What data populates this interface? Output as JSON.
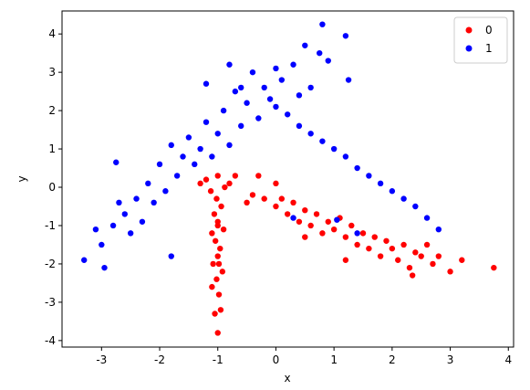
{
  "chart_data": {
    "type": "scatter",
    "xlabel": "x",
    "ylabel": "y",
    "xlim": [
      -3.68,
      4.09
    ],
    "ylim": [
      -4.17,
      4.6
    ],
    "xticks": [
      -3,
      -2,
      -1,
      0,
      1,
      2,
      3,
      4
    ],
    "yticks": [
      -4,
      -3,
      -2,
      -1,
      0,
      1,
      2,
      3,
      4
    ],
    "legend": "upper right",
    "series": [
      {
        "name": "0",
        "color": "#ff0000",
        "x": [
          -1.0,
          -1.05,
          -0.95,
          -1.1,
          -0.98,
          -1.02,
          -0.92,
          -1.08,
          -1.0,
          -0.96,
          -1.04,
          -1.1,
          -0.9,
          -1.0,
          -1.06,
          -0.94,
          -1.02,
          -1.12,
          -0.88,
          -1.2,
          -0.8,
          -1.0,
          -0.7,
          -1.3,
          -0.98,
          -1.0,
          -0.5,
          -0.4,
          -0.3,
          -0.2,
          0,
          0.1,
          0.2,
          0.3,
          0.4,
          0.5,
          0.6,
          0.7,
          0.8,
          0.9,
          1.0,
          1.1,
          1.2,
          1.3,
          1.4,
          1.5,
          1.6,
          1.7,
          1.8,
          1.9,
          2.0,
          2.1,
          2.2,
          2.3,
          2.4,
          2.5,
          2.6,
          2.7,
          2.8,
          3.0,
          3.2,
          3.75,
          2.35,
          0.5,
          1.2,
          0.0
        ],
        "values": [
          -3.8,
          -3.3,
          -3.2,
          -2.6,
          -2.8,
          -2.4,
          -2.2,
          -2.0,
          -1.8,
          -1.6,
          -1.4,
          -1.2,
          -1.1,
          -0.9,
          -0.7,
          -0.5,
          -0.3,
          -0.1,
          0.0,
          0.2,
          0.1,
          0.3,
          0.3,
          0.1,
          -2.0,
          -1.0,
          -0.4,
          -0.2,
          0.3,
          -0.3,
          -0.5,
          -0.3,
          -0.7,
          -0.4,
          -0.9,
          -0.6,
          -1.0,
          -0.7,
          -1.2,
          -0.9,
          -1.1,
          -0.8,
          -1.3,
          -1.0,
          -1.5,
          -1.2,
          -1.6,
          -1.3,
          -1.8,
          -1.4,
          -1.6,
          -1.9,
          -1.5,
          -2.1,
          -1.7,
          -1.8,
          -1.5,
          -2.0,
          -1.8,
          -2.2,
          -1.9,
          -2.1,
          -2.3,
          -1.3,
          -1.9,
          0.1
        ]
      },
      {
        "name": "1",
        "color": "#0000ff",
        "x": [
          -3.3,
          -3.1,
          -3.0,
          -2.95,
          -2.8,
          -2.7,
          -2.6,
          -2.5,
          -2.4,
          -2.3,
          -2.2,
          -2.1,
          -2.0,
          -1.9,
          -1.8,
          -1.7,
          -1.6,
          -1.5,
          -1.4,
          -1.3,
          -1.2,
          -1.1,
          -1.0,
          -0.9,
          -0.8,
          -0.7,
          -0.6,
          -0.5,
          -0.4,
          -0.3,
          -0.2,
          -0.1,
          -2.75,
          -1.8,
          -1.2,
          -0.8,
          0.0,
          0.2,
          0.4,
          0.6,
          0.8,
          1.0,
          1.2,
          1.4,
          1.6,
          1.8,
          2.0,
          2.2,
          2.4,
          2.6,
          2.8,
          0.3,
          1.05,
          1.4,
          0.1,
          0.3,
          0.5,
          0.6,
          0.75,
          0.8,
          0.9,
          1.2,
          1.25,
          0.0,
          -0.6,
          0.4
        ],
        "values": [
          -1.9,
          -1.1,
          -1.5,
          -2.1,
          -1.0,
          -0.4,
          -0.7,
          -1.2,
          -0.3,
          -0.9,
          0.1,
          -0.4,
          0.6,
          -0.1,
          1.1,
          0.3,
          0.8,
          1.3,
          0.6,
          1.0,
          1.7,
          0.8,
          1.4,
          2.0,
          1.1,
          2.5,
          1.6,
          2.2,
          3.0,
          1.8,
          2.6,
          2.3,
          0.65,
          -1.8,
          2.7,
          3.2,
          2.1,
          1.9,
          1.6,
          1.4,
          1.2,
          1.0,
          0.8,
          0.5,
          0.3,
          0.1,
          -0.1,
          -0.3,
          -0.5,
          -0.8,
          -1.1,
          -0.8,
          -0.85,
          -1.2,
          2.8,
          3.2,
          3.7,
          2.6,
          3.5,
          4.25,
          3.3,
          3.95,
          2.8,
          3.1,
          2.6,
          2.4
        ]
      }
    ]
  }
}
